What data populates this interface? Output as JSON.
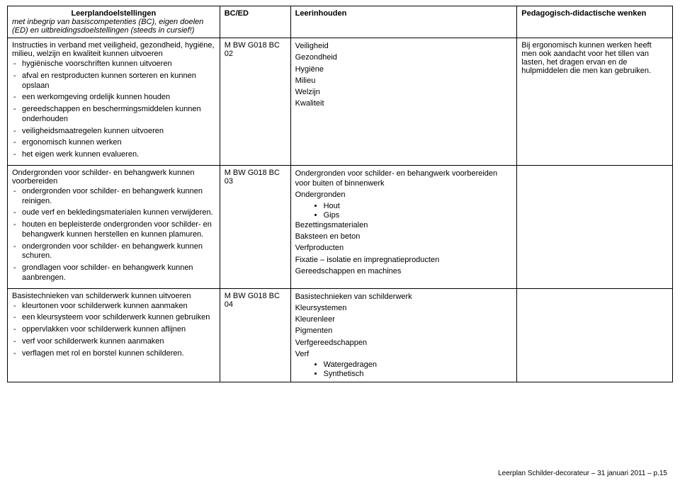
{
  "header": {
    "col1_title": "Leerplandoelstellingen",
    "col1_sub": "met inbegrip van basiscompetenties (BC), eigen doelen (ED) en uitbreidingsdoelstellingen (steeds in cursief!)",
    "col2": "BC/ED",
    "col3": "Leerinhouden",
    "col4": "Pedagogisch-didactische wenken"
  },
  "rows": [
    {
      "left_intro": "Instructies in verband met veiligheid, gezondheid, hygiëne, milieu, welzijn en kwaliteit kunnen uitvoeren",
      "left_items": [
        "hygiënische voorschriften kunnen uitvoeren",
        "afval en restproducten kunnen sorteren en kunnen opslaan",
        "een werkomgeving ordelijk kunnen houden",
        "gereedschappen en beschermingsmiddelen kunnen onderhouden",
        "veiligheidsmaatregelen kunnen uitvoeren",
        "ergonomisch kunnen werken",
        "het eigen werk kunnen evalueren."
      ],
      "code": "M BW G018 BC 02",
      "content_lines": [
        "Veiligheid",
        "Gezondheid",
        "Hygiëne",
        "Milieu",
        "Welzijn",
        "Kwaliteit"
      ],
      "wenken": "Bij ergonomisch kunnen werken heeft men ook aandacht voor het tillen van lasten, het dragen ervan en de hulpmiddelen die men kan gebruiken."
    },
    {
      "left_intro": "Ondergronden voor schilder- en behangwerk kunnen voorbereiden",
      "left_items": [
        "ondergronden voor schilder- en behangwerk kunnen reinigen.",
        "oude verf en bekledingsmaterialen kunnen verwijderen.",
        "houten en bepleisterde ondergronden voor schilder- en behangwerk kunnen herstellen en kunnen plamuren.",
        "ondergronden voor schilder- en behangwerk kunnen schuren.",
        "grondlagen voor schilder- en behangwerk kunnen aanbrengen."
      ],
      "code": "M BW G018 BC 03",
      "content_intro": "Ondergronden voor schilder- en behangwerk voorbereiden voor buiten of binnenwerk",
      "content_groups": [
        {
          "head": "Ondergronden",
          "bullets": [
            "Hout",
            "Gips"
          ]
        },
        {
          "head": "Bezettingsmaterialen",
          "bullets": []
        },
        {
          "head": "Baksteen en beton",
          "bullets": []
        },
        {
          "head": "Verfproducten",
          "bullets": []
        },
        {
          "head": "Fixatie – isolatie en impregnatieproducten",
          "bullets": []
        },
        {
          "head": "Gereedschappen en machines",
          "bullets": []
        }
      ],
      "wenken": ""
    },
    {
      "left_intro": "Basistechnieken van schilderwerk kunnen uitvoeren",
      "left_items": [
        "kleurtonen voor schilderwerk kunnen aanmaken",
        "een kleursysteem voor schilderwerk kunnen gebruiken",
        "oppervlakken voor schilderwerk kunnen aflijnen",
        "verf voor schilderwerk kunnen aanmaken",
        "verflagen met rol en borstel kunnen schilderen."
      ],
      "code": "M BW G018 BC 04",
      "content_groups": [
        {
          "head": "Basistechnieken van schilderwerk",
          "bullets": []
        },
        {
          "head": "Kleursystemen",
          "bullets": []
        },
        {
          "head": "Kleurenleer",
          "bullets": []
        },
        {
          "head": "Pigmenten",
          "bullets": []
        },
        {
          "head": "Verfgereedschappen",
          "bullets": []
        },
        {
          "head": "Verf",
          "bullets": [
            "Watergedragen",
            "Synthetisch"
          ]
        }
      ],
      "wenken": ""
    }
  ],
  "footer": "Leerplan Schilder-decorateur – 31 januari 2011 – p.15"
}
